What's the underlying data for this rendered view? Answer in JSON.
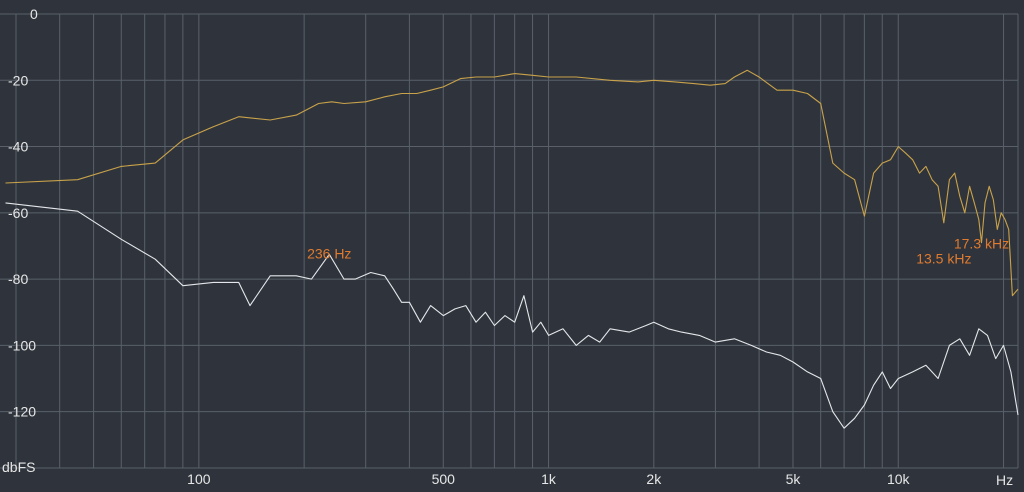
{
  "colors": {
    "background": "#2f343c",
    "grid": "#5a6069",
    "orange_series": "#c9a24a",
    "white_series": "#e4e6ea",
    "annotation": "#e07a2e",
    "tick_text": "#e6e6e6"
  },
  "chart_data": {
    "type": "line",
    "x_scale": "log",
    "x_unit_label": "Hz",
    "y_unit_label": "dbFS",
    "xlim": [
      27,
      22000
    ],
    "ylim": [
      -137,
      0
    ],
    "grid": true,
    "y_ticks": [
      0,
      -20,
      -40,
      -60,
      -80,
      -100,
      -120
    ],
    "y_tick_labels": [
      "0",
      "-20",
      "-40",
      "-60",
      "-80",
      "-100",
      "-120"
    ],
    "x_ticks": [
      100,
      500,
      1000,
      2000,
      5000,
      10000
    ],
    "x_tick_labels": [
      "100",
      "500",
      "1k",
      "2k",
      "5k",
      "10k"
    ],
    "minor_grid_x": [
      30,
      40,
      50,
      60,
      70,
      80,
      90,
      200,
      300,
      400,
      600,
      700,
      800,
      900,
      3000,
      4000,
      6000,
      7000,
      8000,
      9000,
      20000
    ],
    "annotations": [
      {
        "text": "236 Hz",
        "x": 236,
        "y": -75
      },
      {
        "text": "17.3  kHz",
        "x": 17300,
        "y": -72
      },
      {
        "text": "13.5  kHz",
        "x": 13500,
        "y": -76.5
      }
    ],
    "series": [
      {
        "x": [
          28,
          45,
          60,
          75,
          90,
          110,
          130,
          160,
          190,
          220,
          240,
          260,
          300,
          340,
          380,
          420,
          460,
          500,
          560,
          620,
          700,
          800,
          900,
          1000,
          1200,
          1500,
          1800,
          2000,
          2300,
          2600,
          2900,
          3200,
          3400,
          3700,
          4000,
          4500,
          5000,
          5500,
          6000,
          6500,
          7000,
          7500,
          8000,
          8500,
          9000,
          9500,
          10000,
          10500,
          11000,
          11500,
          12000,
          12500,
          13000,
          13500,
          14000,
          14500,
          15000,
          15500,
          16000,
          16500,
          17000,
          17300,
          17700,
          18200,
          18700,
          19200,
          19700,
          20200,
          20700,
          21200,
          22000
        ],
        "y": [
          -51,
          -50,
          -46,
          -45,
          -38,
          -34,
          -31,
          -32,
          -30.5,
          -27,
          -26.5,
          -27,
          -26.5,
          -25,
          -24,
          -24,
          -23,
          -22,
          -19.5,
          -19,
          -19,
          -18,
          -18.5,
          -19,
          -19,
          -20,
          -20.5,
          -20,
          -20.5,
          -21,
          -21.5,
          -21,
          -19,
          -17,
          -19,
          -23,
          -23,
          -24,
          -27,
          -45,
          -48,
          -50,
          -61,
          -48,
          -45,
          -44,
          -40,
          -42,
          -44,
          -48,
          -46,
          -50,
          -52,
          -63,
          -50,
          -48,
          -55,
          -60,
          -52,
          -57,
          -62,
          -69,
          -57,
          -52,
          -56,
          -65,
          -60,
          -62,
          -65,
          -85,
          -83
        ]
      },
      {
        "x": [
          28,
          45,
          60,
          75,
          90,
          110,
          130,
          140,
          160,
          190,
          210,
          236,
          260,
          280,
          310,
          340,
          360,
          380,
          400,
          430,
          460,
          500,
          540,
          580,
          620,
          660,
          700,
          750,
          800,
          850,
          900,
          950,
          1000,
          1100,
          1200,
          1300,
          1400,
          1500,
          1700,
          1900,
          2000,
          2200,
          2400,
          2700,
          3000,
          3400,
          3800,
          4200,
          4600,
          5000,
          5500,
          6000,
          6500,
          7000,
          7500,
          8000,
          8500,
          9000,
          9500,
          10000,
          11000,
          12000,
          13000,
          14000,
          15000,
          16000,
          17000,
          18000,
          19000,
          20000,
          21000,
          22000
        ],
        "y": [
          -57,
          -59.5,
          -68,
          -74,
          -82,
          -81,
          -81,
          -88,
          -79,
          -79,
          -80,
          -72.5,
          -80,
          -80,
          -78,
          -79,
          -83,
          -87,
          -87,
          -93,
          -88,
          -91,
          -89,
          -88,
          -93,
          -90,
          -94,
          -91,
          -93,
          -85,
          -96,
          -93,
          -97,
          -95,
          -100,
          -97,
          -99,
          -95,
          -96,
          -94,
          -93,
          -95,
          -96,
          -97,
          -99,
          -98,
          -100,
          -102,
          -103,
          -105,
          -108,
          -110,
          -120,
          -125,
          -122,
          -118,
          -112,
          -108,
          -113,
          -110,
          -108,
          -106,
          -110,
          -100,
          -98,
          -103,
          -95,
          -97,
          -104,
          -100,
          -108,
          -121
        ]
      }
    ]
  }
}
